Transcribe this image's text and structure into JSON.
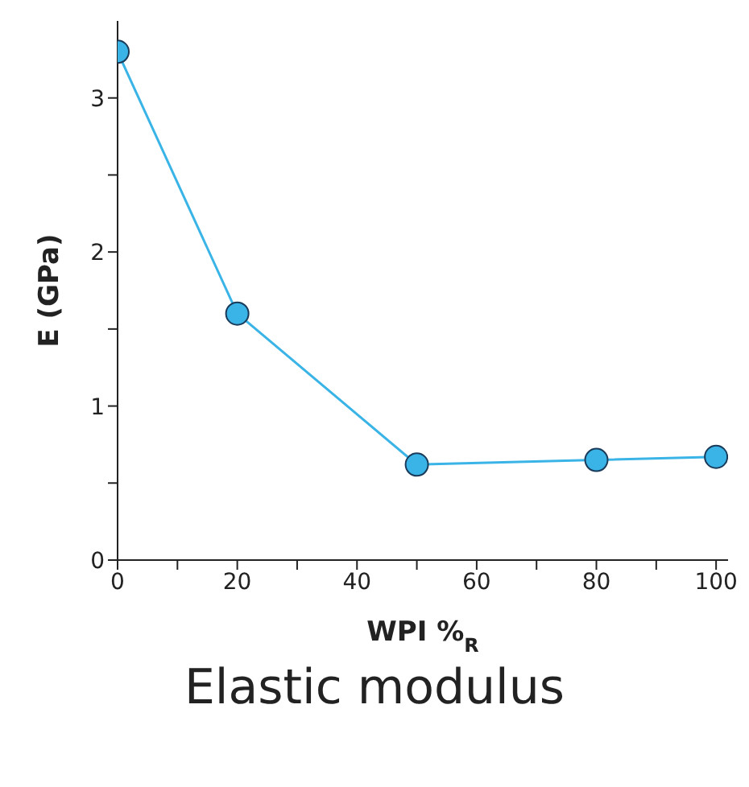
{
  "chart_data": {
    "type": "line",
    "title": "Elastic modulus",
    "xlabel": "WPI %$_{R}$",
    "ylabel": "E (GPa)",
    "x": [
      0,
      20,
      50,
      80,
      100
    ],
    "series": [
      {
        "color": "#3ab4e6",
        "values": [
          3.3,
          1.6,
          0.62,
          0.65,
          0.67
        ]
      }
    ],
    "xlim": [
      0,
      102
    ],
    "ylim": [
      0,
      3.5
    ],
    "xticks": [
      0,
      {
        "value": 10,
        "label": null
      },
      20,
      {
        "value": 30,
        "label": null
      },
      40,
      {
        "value": 50,
        "label": null
      },
      60,
      {
        "value": 70,
        "label": null
      },
      80,
      {
        "value": 90,
        "label": null
      },
      100
    ],
    "yticks": [
      0,
      {
        "value": 0.5,
        "label": null
      },
      1,
      {
        "value": 1.5,
        "label": null
      },
      2,
      {
        "value": 2.5,
        "label": null
      },
      3
    ],
    "marker": "circle",
    "line_style": "solid",
    "grid": false,
    "legend": false
  }
}
